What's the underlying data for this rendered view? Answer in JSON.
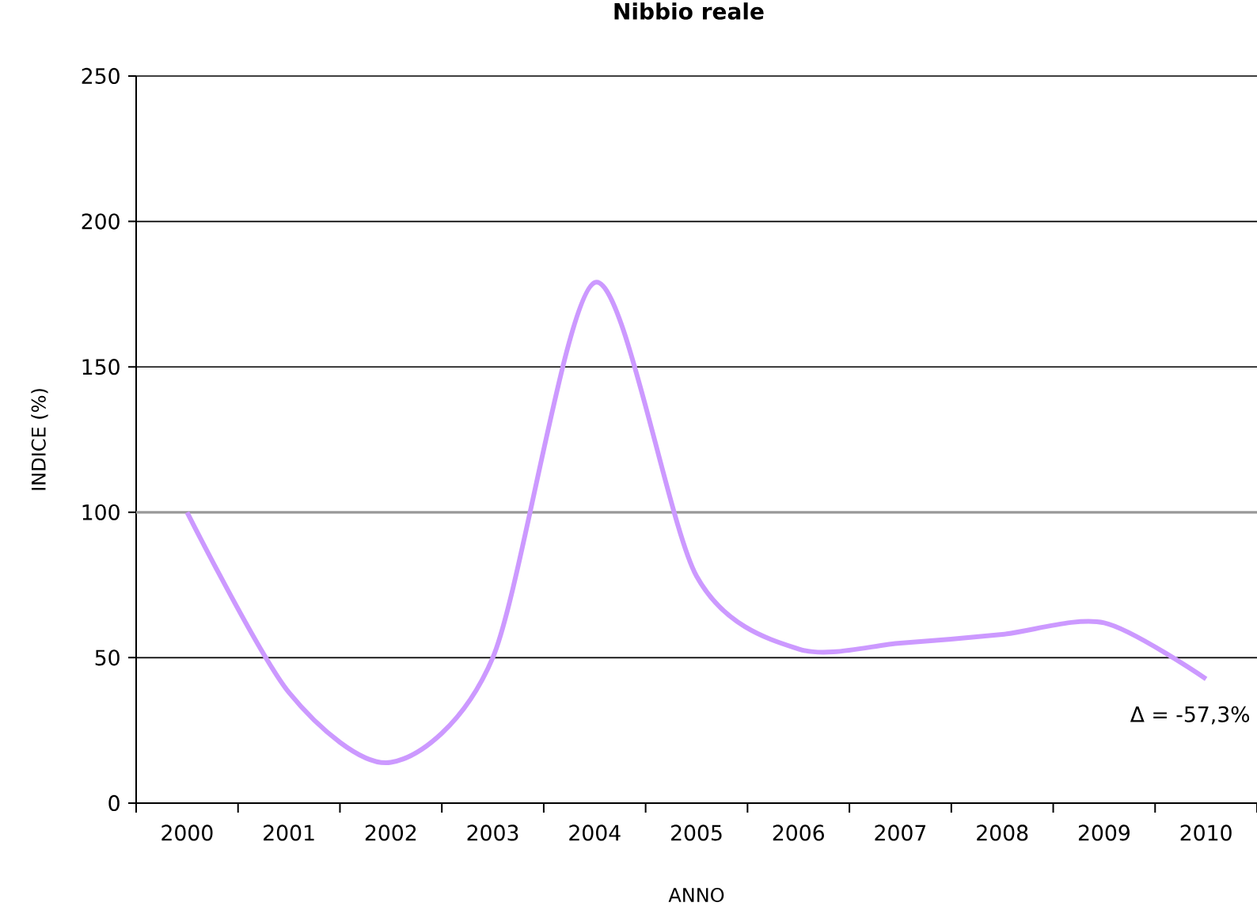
{
  "chart_data": {
    "type": "line",
    "title": "Nibbio reale",
    "xlabel": "ANNO",
    "ylabel": "INDICE (%)",
    "categories": [
      "2000",
      "2001",
      "2002",
      "2003",
      "2004",
      "2005",
      "2006",
      "2007",
      "2008",
      "2009",
      "2010"
    ],
    "values": [
      100,
      38,
      14,
      50,
      179,
      78,
      53,
      55,
      58,
      62,
      42.7
    ],
    "color": "#cc99ff",
    "ylim": [
      0,
      250
    ],
    "yticks": [
      0,
      50,
      100,
      150,
      200,
      250
    ],
    "grid": "y",
    "marker": "none",
    "ref_lines": [
      {
        "axis": "y",
        "value": 100,
        "color": "#999999"
      }
    ],
    "annotations": [
      {
        "text": "Δ = -57,3%",
        "x": "2010",
        "y": 42.7
      }
    ]
  }
}
